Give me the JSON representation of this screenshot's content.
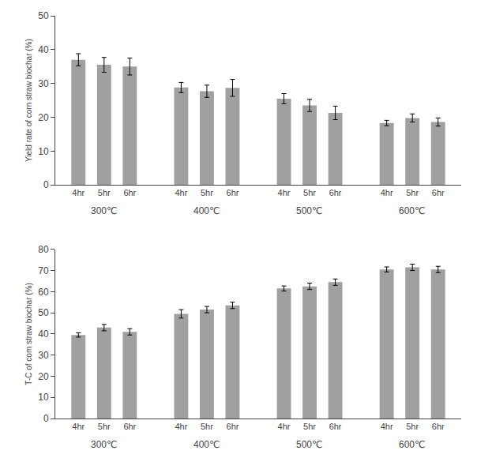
{
  "chart_data": [
    {
      "type": "bar",
      "ylabel": "Yield rate of corn straw biochar (%)",
      "categories": [
        "4hr",
        "5hr",
        "6hr",
        "4hr",
        "5hr",
        "6hr",
        "4hr",
        "5hr",
        "6hr",
        "4hr",
        "5hr",
        "6hr"
      ],
      "values": [
        37.0,
        35.5,
        35.0,
        28.8,
        27.7,
        28.7,
        25.5,
        23.5,
        21.3,
        18.3,
        19.8,
        18.6
      ],
      "errors": [
        1.8,
        2.2,
        2.5,
        1.5,
        1.8,
        2.5,
        1.5,
        1.8,
        2.0,
        0.8,
        1.2,
        1.2
      ],
      "annotations": [
        "300℃",
        "400℃",
        "500℃",
        "600℃"
      ],
      "color": "#a0a0a0",
      "ylim": [
        0,
        50
      ],
      "yticks": [
        0,
        10,
        20,
        30,
        40,
        50
      ],
      "grid": false
    },
    {
      "type": "bar",
      "ylabel": "T-C of com straw biochar (%)",
      "categories": [
        "4hr",
        "5hr",
        "6hr",
        "4hr",
        "5hr",
        "6hr",
        "4hr",
        "5hr",
        "6hr",
        "4hr",
        "5hr",
        "6hr"
      ],
      "values": [
        39.5,
        43.0,
        41.0,
        49.5,
        51.5,
        53.5,
        61.5,
        62.5,
        64.5,
        70.5,
        71.5,
        70.5
      ],
      "errors": [
        1.0,
        1.5,
        1.5,
        2.0,
        1.5,
        1.5,
        1.2,
        1.5,
        1.5,
        1.2,
        1.5,
        1.5
      ],
      "annotations": [
        "300℃",
        "400℃",
        "500℃",
        "600℃"
      ],
      "color": "#a0a0a0",
      "ylim": [
        0,
        80
      ],
      "yticks": [
        0,
        10,
        20,
        30,
        40,
        50,
        60,
        70,
        80
      ],
      "grid": false
    }
  ]
}
